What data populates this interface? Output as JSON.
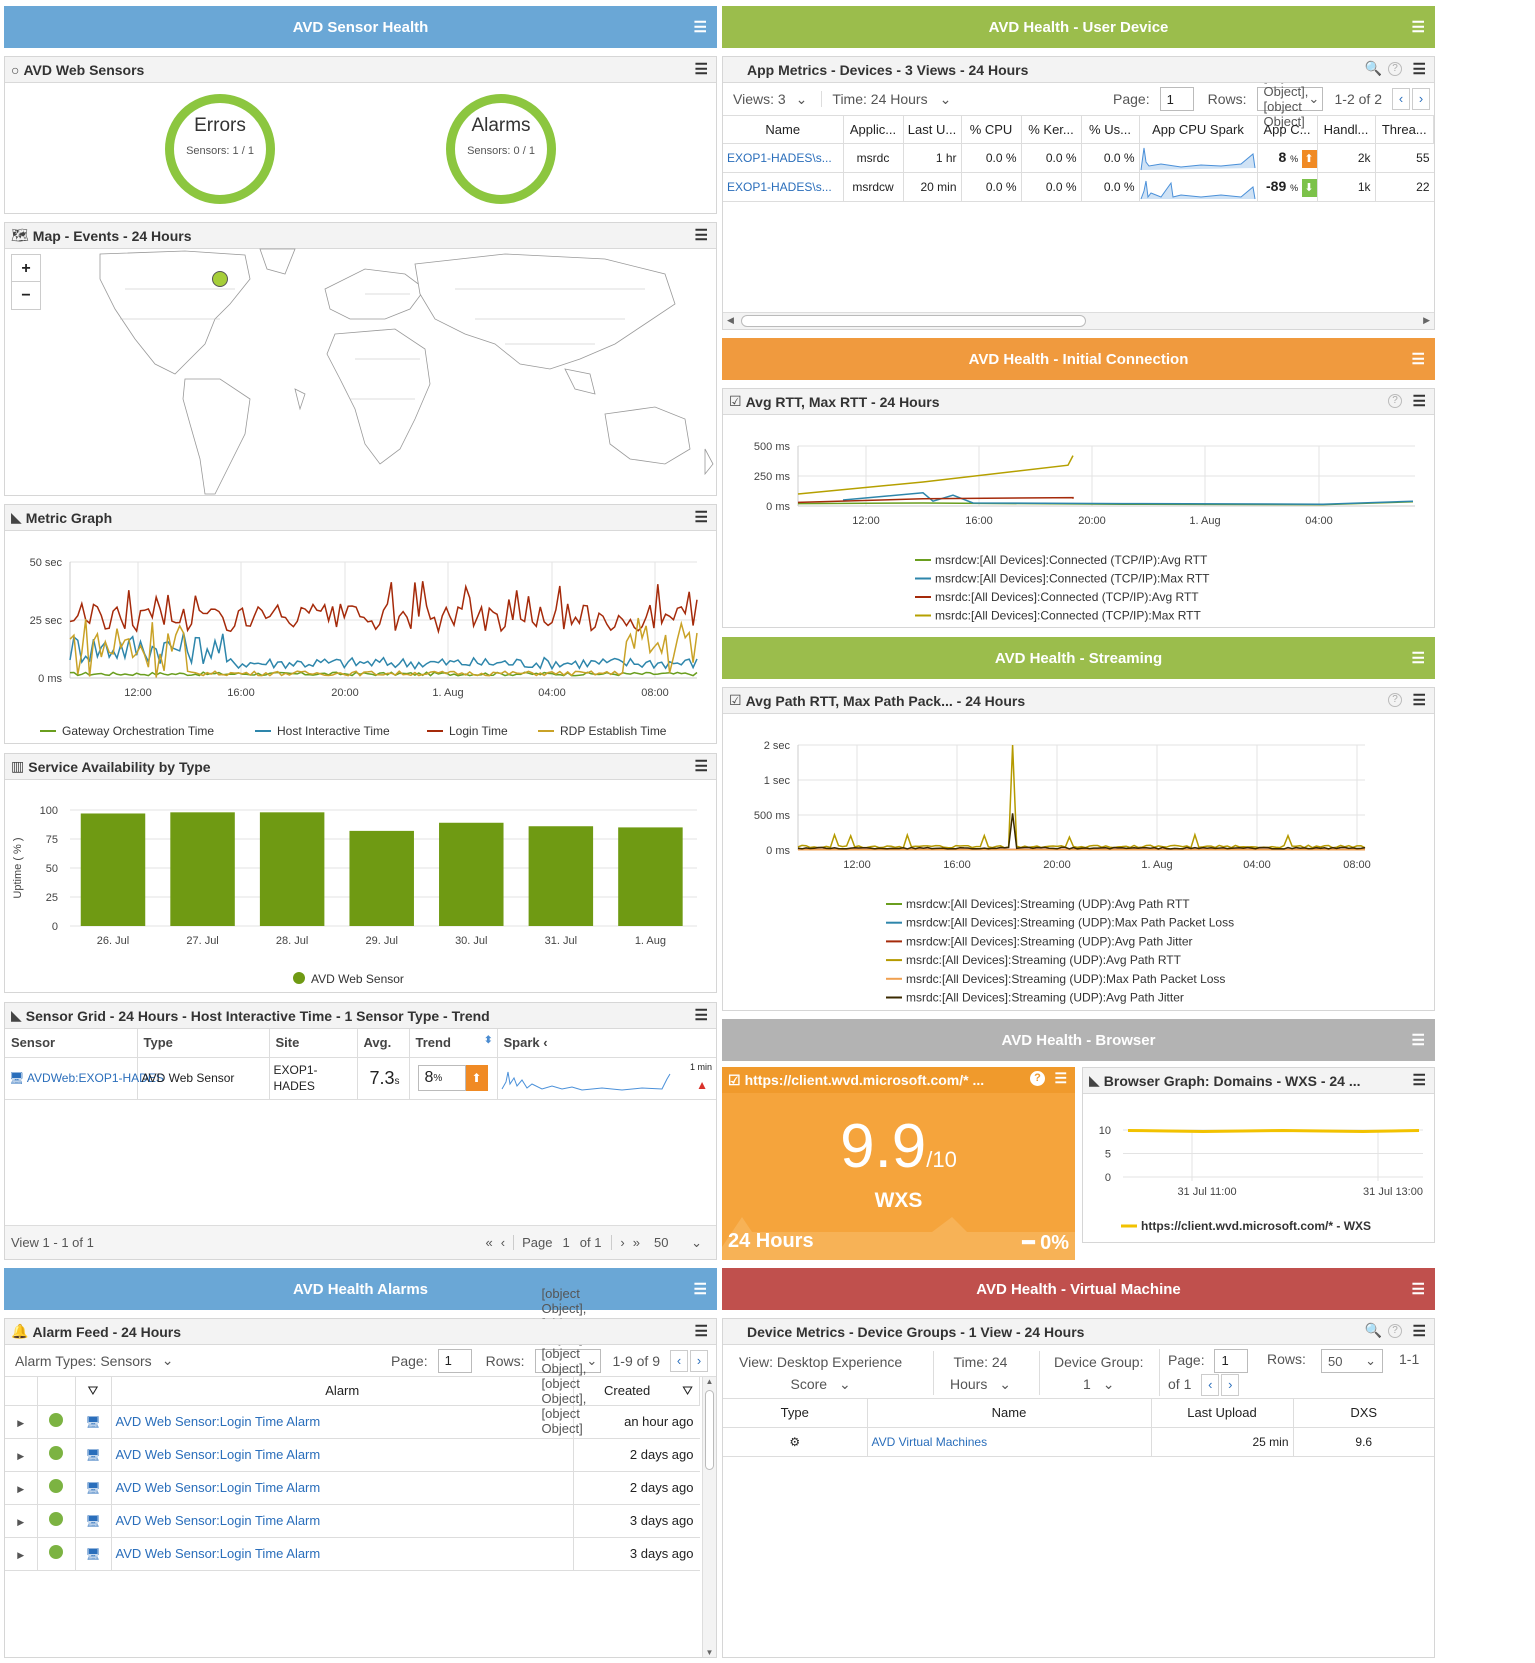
{
  "sections": {
    "sensor_health": "AVD Sensor Health",
    "user_device": "AVD Health - User Device",
    "initial_connection": "AVD Health - Initial Connection",
    "streaming": "AVD Health - Streaming",
    "browser": "AVD Health - Browser",
    "alarms": "AVD Health Alarms",
    "virtual_machine": "AVD Health - Virtual Machine"
  },
  "colors": {
    "blue": "#6aa7d6",
    "green": "#9bbd4c",
    "orange": "#f09a3e",
    "gray": "#b3b3b3",
    "red": "#c0504d",
    "gauge": "#8cc63f"
  },
  "web_sensors": {
    "title": "AVD Web Sensors",
    "gauges": [
      {
        "label": "Errors",
        "sub": "Sensors: 1 / 1"
      },
      {
        "label": "Alarms",
        "sub": "Sensors: 0 / 1"
      }
    ]
  },
  "map": {
    "title": "Map - Events - 24 Hours",
    "zoom_in": "+",
    "zoom_out": "−"
  },
  "metric_graph": {
    "title": "Metric Graph",
    "chart_data": {
      "type": "line",
      "y_ticks": [
        "50 sec",
        "25 sec",
        "0 ms"
      ],
      "x_ticks": [
        "12:00",
        "16:00",
        "20:00",
        "1. Aug",
        "04:00",
        "08:00"
      ],
      "series": [
        {
          "name": "Gateway Orchestration Time",
          "color": "#6a9e1f"
        },
        {
          "name": "Host Interactive Time",
          "color": "#2e86ab"
        },
        {
          "name": "Login Time",
          "color": "#a52a0a"
        },
        {
          "name": "RDP Establish Time",
          "color": "#c9a227"
        }
      ]
    }
  },
  "availability": {
    "title": "Service Availability by Type",
    "chart_data": {
      "type": "bar",
      "categories": [
        "26. Jul",
        "27. Jul",
        "28. Jul",
        "29. Jul",
        "30. Jul",
        "31. Jul",
        "1. Aug"
      ],
      "values": [
        97,
        98,
        98,
        82,
        89,
        86,
        85
      ],
      "ylim": [
        0,
        100
      ],
      "y_ticks": [
        "100",
        "75",
        "50",
        "25",
        "0"
      ],
      "ylabel": "Uptime ( % )",
      "series": [
        {
          "name": "AVD Web Sensor"
        }
      ]
    }
  },
  "sensor_grid": {
    "title": "Sensor Grid - 24 Hours - Host Interactive Time - 1 Sensor Type - Trend",
    "columns": [
      "Sensor",
      "Type",
      "Site",
      "Avg.",
      "Trend",
      "Spark"
    ],
    "row": {
      "sensor": "AVDWeb:EXOP1-HADES",
      "type": "AVD Web Sensor",
      "site1": "EXOP1-",
      "site2": "HADES",
      "avg": "7.3",
      "avg_unit": "s",
      "trend": "8",
      "trend_unit": "%",
      "spark_label": "1 min"
    },
    "footer": {
      "view": "View 1 - 1 of 1",
      "page_label": "Page",
      "page": "1",
      "of": "of 1",
      "rows": "50"
    }
  },
  "app_metrics": {
    "title": "App Metrics - Devices - 3 Views - 24 Hours",
    "views": "Views: 3",
    "time": "Time: 24 Hours",
    "page_label": "Page:",
    "page": "1",
    "rows_label": "Rows:",
    "rows": [
      {
        "name": "EXOP1-HADES\\s...",
        "app": "msrdc",
        "last": "1 hr",
        "cpu": "0.0 %",
        "ker": "0.0 %",
        "us": "0.0 %",
        "appc": "8",
        "appc_unit": "%",
        "handles": "2k",
        "threads": "55",
        "dir": "up"
      },
      {
        "name": "EXOP1-HADES\\s...",
        "app": "msrdcw",
        "last": "20 min",
        "cpu": "0.0 %",
        "ker": "0.0 %",
        "us": "0.0 %",
        "appc": "-89",
        "appc_unit": "%",
        "handles": "1k",
        "threads": "22",
        "dir": "down"
      }
    ],
    "range": "1-2 of 2",
    "columns": [
      "Name",
      "Applic...",
      "Last U...",
      "% CPU",
      "% Ker...",
      "% Us...",
      "App CPU Spark",
      "App C...",
      "Handl...",
      "Threa..."
    ]
  },
  "rtt": {
    "title": "Avg RTT, Max RTT - 24 Hours",
    "chart_data": {
      "type": "line",
      "y_ticks": [
        "500 ms",
        "250 ms",
        "0 ms"
      ],
      "x_ticks": [
        "12:00",
        "16:00",
        "20:00",
        "1. Aug",
        "04:00"
      ],
      "series": [
        {
          "name": "msrdcw:[All Devices]:Connected (TCP/IP):Avg RTT",
          "color": "#6a9e1f"
        },
        {
          "name": "msrdcw:[All Devices]:Connected (TCP/IP):Max RTT",
          "color": "#2e86ab"
        },
        {
          "name": "msrdc:[All Devices]:Connected (TCP/IP):Avg RTT",
          "color": "#a52a0a"
        },
        {
          "name": "msrdc:[All Devices]:Connected (TCP/IP):Max RTT",
          "color": "#b5a000"
        }
      ]
    }
  },
  "path": {
    "title": "Avg Path RTT, Max Path Pack... - 24 Hours",
    "chart_data": {
      "type": "line",
      "y_ticks": [
        "2 sec",
        "1 sec",
        "500 ms",
        "0 ms"
      ],
      "x_ticks": [
        "12:00",
        "16:00",
        "20:00",
        "1. Aug",
        "04:00",
        "08:00"
      ],
      "series": [
        {
          "name": "msrdcw:[All Devices]:Streaming (UDP):Avg Path RTT",
          "color": "#6a9e1f"
        },
        {
          "name": "msrdcw:[All Devices]:Streaming (UDP):Max Path Packet Loss",
          "color": "#2e86ab"
        },
        {
          "name": "msrdcw:[All Devices]:Streaming (UDP):Avg Path Jitter",
          "color": "#a52a0a"
        },
        {
          "name": "msrdc:[All Devices]:Streaming (UDP):Avg Path RTT",
          "color": "#b59a00"
        },
        {
          "name": "msrdc:[All Devices]:Streaming (UDP):Max Path Packet Loss",
          "color": "#f0a050"
        },
        {
          "name": "msrdc:[All Devices]:Streaming (UDP):Avg Path Jitter",
          "color": "#3a2a00"
        }
      ]
    }
  },
  "wxs": {
    "title": "https://client.wvd.microsoft.com/* ...",
    "score": "9.9",
    "denom": "/10",
    "label": "WXS",
    "period": "24 Hours",
    "change": "0%"
  },
  "browser_graph": {
    "title": "Browser Graph: Domains - WXS - 24 ...",
    "chart_data": {
      "type": "line",
      "y_ticks": [
        "10",
        "5",
        "0"
      ],
      "x_ticks": [
        "31 Jul 11:00",
        "31 Jul 13:00"
      ],
      "series": [
        {
          "name": "https://client.wvd.microsoft.com/* - WXS",
          "color": "#f2c200",
          "values": [
            9.9,
            9.9
          ]
        }
      ]
    }
  },
  "alarm_feed": {
    "title": "Alarm Feed - 24 Hours",
    "types": "Alarm Types: Sensors",
    "page_label": "Page:",
    "page": "1",
    "rows_label": "Rows:",
    "rows": [
      {
        "alarm": "AVD Web Sensor:Login Time Alarm",
        "created": "an hour ago"
      },
      {
        "alarm": "AVD Web Sensor:Login Time Alarm",
        "created": "2 days ago"
      },
      {
        "alarm": "AVD Web Sensor:Login Time Alarm",
        "created": "2 days ago"
      },
      {
        "alarm": "AVD Web Sensor:Login Time Alarm",
        "created": "3 days ago"
      },
      {
        "alarm": "AVD Web Sensor:Login Time Alarm",
        "created": "3 days ago"
      }
    ],
    "range": "1-9 of 9",
    "col_alarm": "Alarm",
    "col_created": "Created"
  },
  "device_metrics": {
    "title": "Device Metrics - Device Groups - 1 View - 24 Hours",
    "view1": "View: Desktop Experience",
    "view2": "Score",
    "time1": "Time: 24",
    "time2": "Hours",
    "group1": "Device Group:",
    "group2": "1",
    "page_label": "Page:",
    "page": "1",
    "of": "of 1",
    "rows_label": "Rows:",
    "rows": "50",
    "range": "1-1",
    "columns": [
      "Type",
      "Name",
      "Last Upload",
      "DXS"
    ],
    "row": {
      "name": "AVD Virtual Machines",
      "last": "25 min",
      "dxs": "9.6"
    }
  }
}
